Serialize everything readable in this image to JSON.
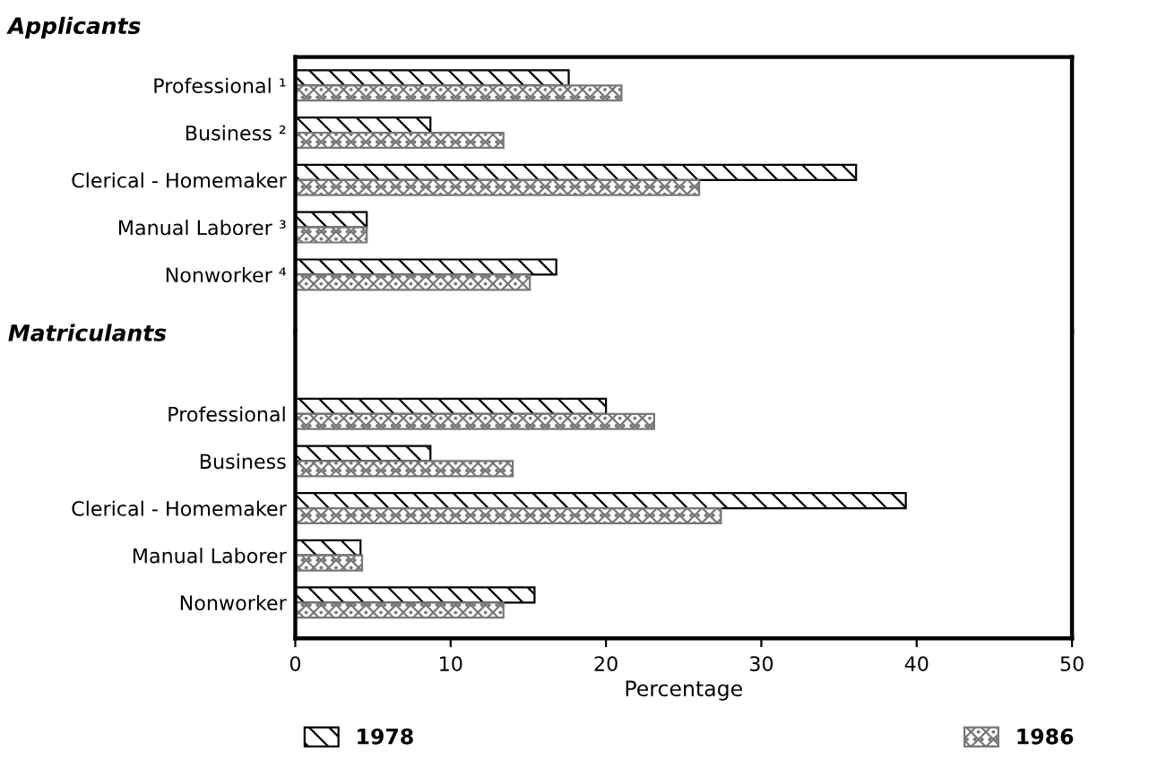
{
  "chart_data": [
    {
      "type": "bar",
      "orientation": "horizontal",
      "title": "Applicants",
      "categories": [
        "Professional ¹",
        "Business ²",
        "Clerical - Homemaker",
        "Manual Laborer ³",
        "Nonworker ⁴"
      ],
      "xlim": [
        0,
        50
      ],
      "tick_labels": "y",
      "legend": "bottom",
      "series": [
        {
          "name": "1978",
          "color": "#000000",
          "values": [
            17.6,
            8.7,
            36.1,
            4.6,
            16.8
          ]
        },
        {
          "name": "1986",
          "color": "#777777",
          "values": [
            21.0,
            13.4,
            26.0,
            4.6,
            15.1
          ]
        }
      ]
    },
    {
      "type": "bar",
      "orientation": "horizontal",
      "title": "Matriculants",
      "categories": [
        "Professional",
        "Business",
        "Clerical - Homemaker",
        "Manual Laborer",
        "Nonworker"
      ],
      "xlim": [
        0,
        50
      ],
      "xticks": [
        0,
        10,
        20,
        30,
        40,
        50
      ],
      "xlabel": "Percentage",
      "series": [
        {
          "color": "#000000",
          "values": [
            20.0,
            8.7,
            39.3,
            4.2,
            15.4
          ]
        },
        {
          "color": "#777777",
          "values": [
            23.1,
            14.0,
            27.4,
            4.3,
            13.4
          ]
        }
      ]
    }
  ]
}
